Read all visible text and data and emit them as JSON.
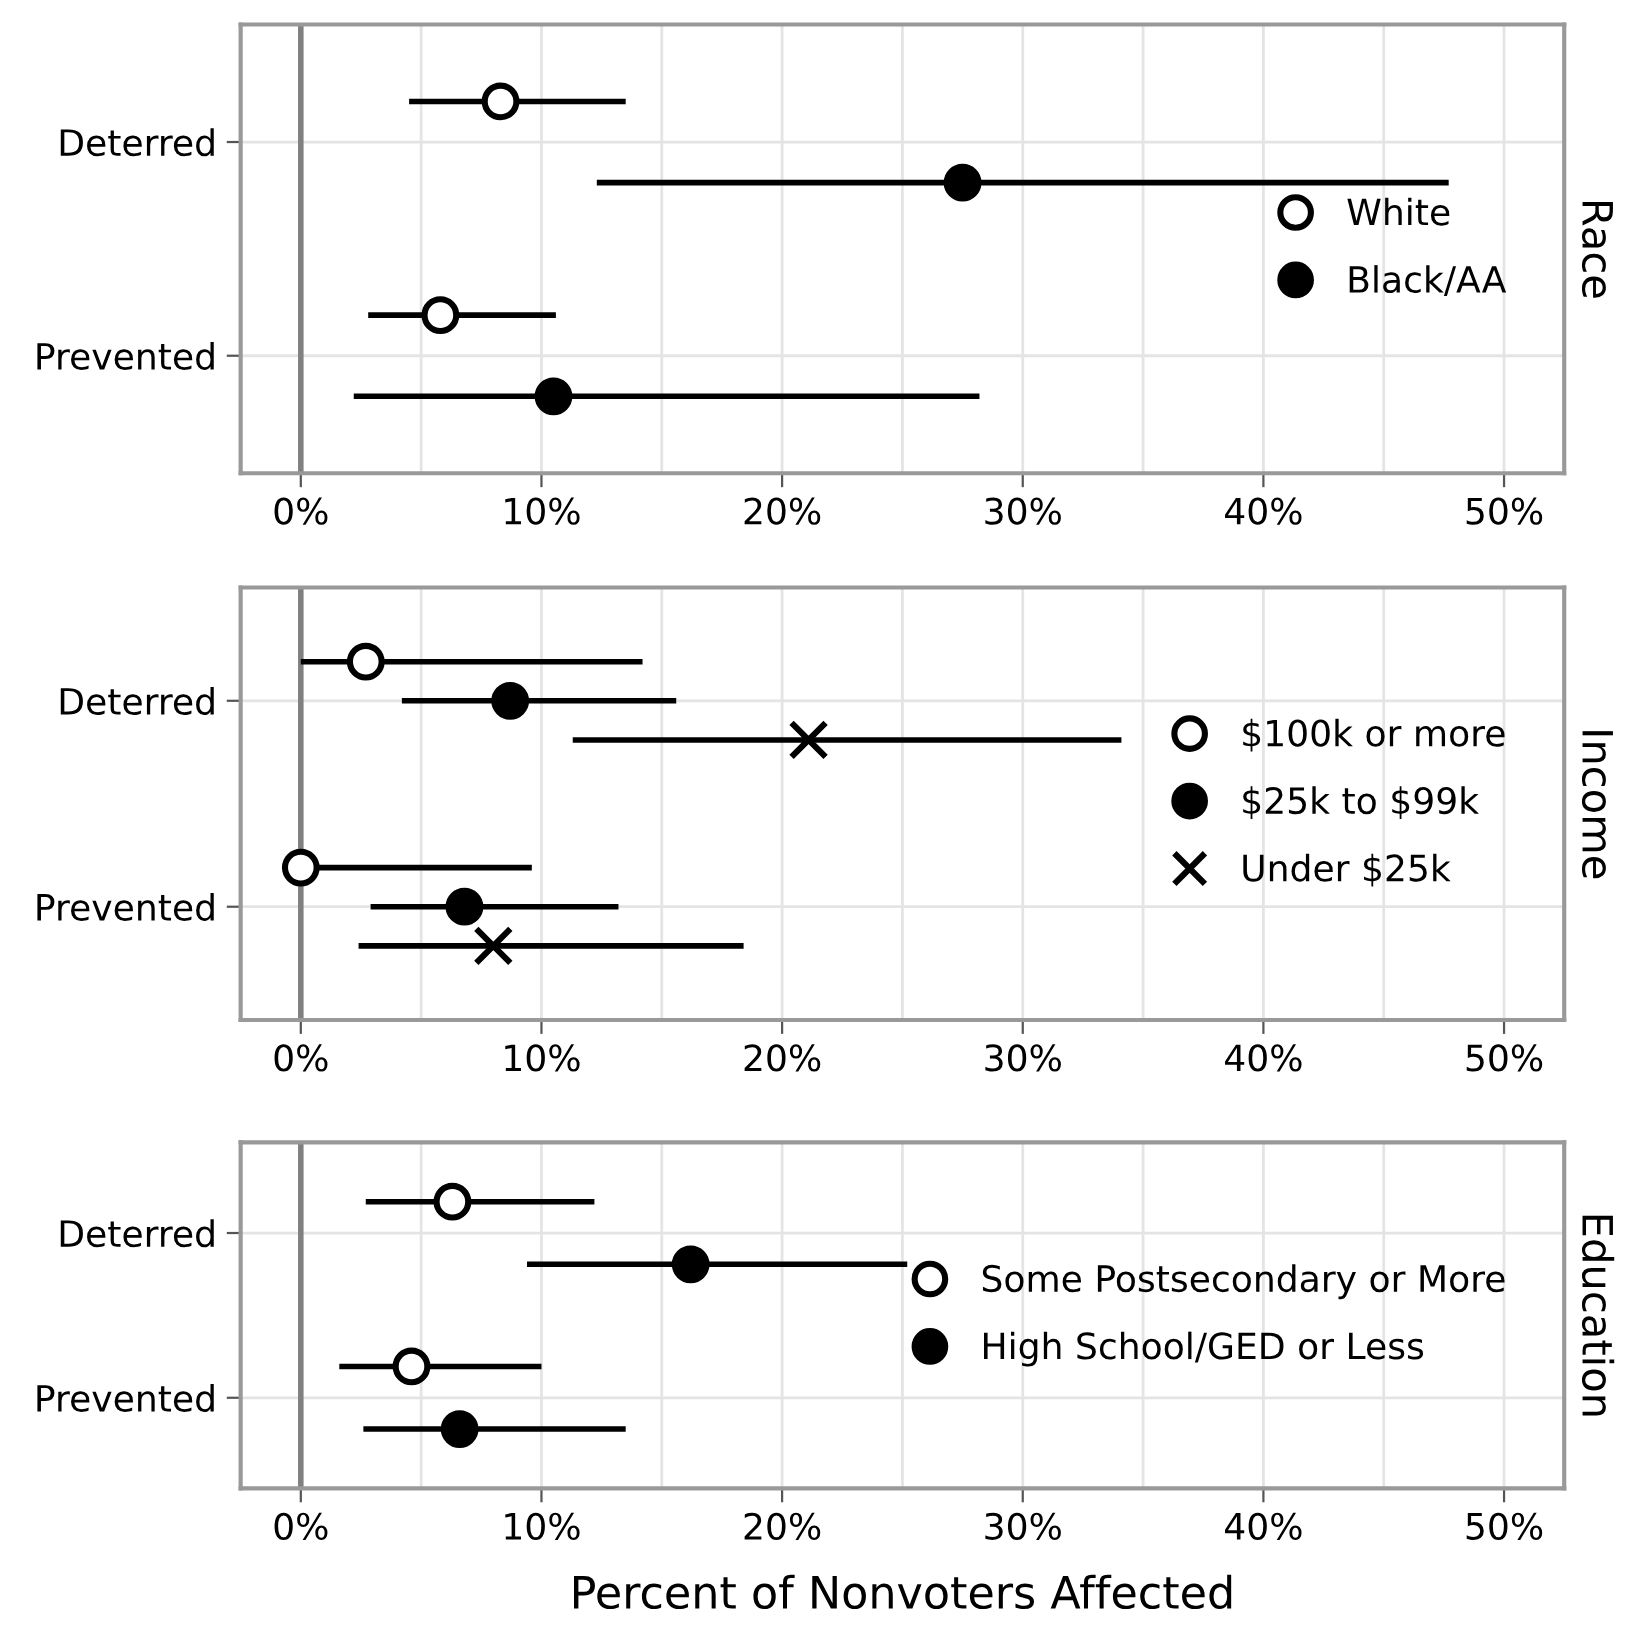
{
  "chart_data": [
    {
      "type": "scatter",
      "orientation": "horizontal",
      "title": "Race",
      "categories": [
        "Deterred",
        "Prevented"
      ],
      "xlim": [
        -2.5,
        52.5
      ],
      "xticks": [
        {
          "value": 0,
          "label": "0%"
        },
        {
          "value": 5,
          "label": null
        },
        {
          "value": 10,
          "label": "10%"
        },
        {
          "value": 15,
          "label": null
        },
        {
          "value": 20,
          "label": "20%"
        },
        {
          "value": 25,
          "label": null
        },
        {
          "value": 30,
          "label": "30%"
        },
        {
          "value": 35,
          "label": null
        },
        {
          "value": 40,
          "label": "40%"
        },
        {
          "value": 45,
          "label": null
        },
        {
          "value": 50,
          "label": "50%"
        }
      ],
      "grid": true,
      "legend": "right",
      "marker": "circle",
      "ref_lines": [
        {
          "axis": "x",
          "value": 0,
          "color": "#808080"
        }
      ],
      "series": [
        {
          "name": "White",
          "color": "#ffffff",
          "values": [
            8.3,
            5.8
          ],
          "errors": [
            [
              4.5,
              13.5
            ],
            [
              2.8,
              10.6
            ]
          ]
        },
        {
          "name": "Black/AA",
          "color": "#000000",
          "values": [
            27.5,
            10.5
          ],
          "errors": [
            [
              12.3,
              47.7
            ],
            [
              2.2,
              28.2
            ]
          ]
        }
      ]
    },
    {
      "type": "scatter",
      "orientation": "horizontal",
      "title": "Income",
      "categories": [
        "Deterred",
        "Prevented"
      ],
      "xlim": [
        -2.5,
        52.5
      ],
      "xticks": [
        {
          "value": 0,
          "label": "0%"
        },
        {
          "value": 5,
          "label": null
        },
        {
          "value": 10,
          "label": "10%"
        },
        {
          "value": 15,
          "label": null
        },
        {
          "value": 20,
          "label": "20%"
        },
        {
          "value": 25,
          "label": null
        },
        {
          "value": 30,
          "label": "30%"
        },
        {
          "value": 35,
          "label": null
        },
        {
          "value": 40,
          "label": "40%"
        },
        {
          "value": 45,
          "label": null
        },
        {
          "value": 50,
          "label": "50%"
        }
      ],
      "grid": true,
      "legend": "right",
      "marker": "circle",
      "ref_lines": [
        {
          "axis": "x",
          "value": 0,
          "color": "#808080"
        }
      ],
      "series": [
        {
          "name": "$100k or more",
          "color": "#ffffff",
          "values": [
            2.7,
            0
          ],
          "errors": [
            [
              0,
              14.2
            ],
            [
              0,
              9.6
            ]
          ]
        },
        {
          "name": "$25k to $99k",
          "color": "#000000",
          "values": [
            8.7,
            6.8
          ],
          "errors": [
            [
              4.2,
              15.6
            ],
            [
              2.9,
              13.2
            ]
          ]
        },
        {
          "name": "Under $25k",
          "color": "#000000",
          "marker": "cross",
          "values": [
            21.1,
            8.0
          ],
          "errors": [
            [
              11.3,
              34.1
            ],
            [
              2.4,
              18.4
            ]
          ]
        }
      ]
    },
    {
      "type": "scatter",
      "orientation": "horizontal",
      "title": "Education",
      "xlabel": "Percent of Nonvoters Affected",
      "categories": [
        "Deterred",
        "Prevented"
      ],
      "xlim": [
        -2.5,
        52.5
      ],
      "xticks": [
        {
          "value": 0,
          "label": "0%"
        },
        {
          "value": 5,
          "label": null
        },
        {
          "value": 10,
          "label": "10%"
        },
        {
          "value": 15,
          "label": null
        },
        {
          "value": 20,
          "label": "20%"
        },
        {
          "value": 25,
          "label": null
        },
        {
          "value": 30,
          "label": "30%"
        },
        {
          "value": 35,
          "label": null
        },
        {
          "value": 40,
          "label": "40%"
        },
        {
          "value": 45,
          "label": null
        },
        {
          "value": 50,
          "label": "50%"
        }
      ],
      "grid": true,
      "legend": "right",
      "marker": "circle",
      "ref_lines": [
        {
          "axis": "x",
          "value": 0,
          "color": "#808080"
        }
      ],
      "series": [
        {
          "name": "Some Postsecondary or More",
          "color": "#ffffff",
          "values": [
            6.3,
            4.6
          ],
          "errors": [
            [
              2.7,
              12.2
            ],
            [
              1.6,
              10.0
            ]
          ]
        },
        {
          "name": "High School/GED or Less",
          "color": "#000000",
          "values": [
            16.2,
            6.6
          ],
          "errors": [
            [
              9.4,
              25.2
            ],
            [
              2.6,
              13.5
            ]
          ]
        }
      ]
    }
  ]
}
